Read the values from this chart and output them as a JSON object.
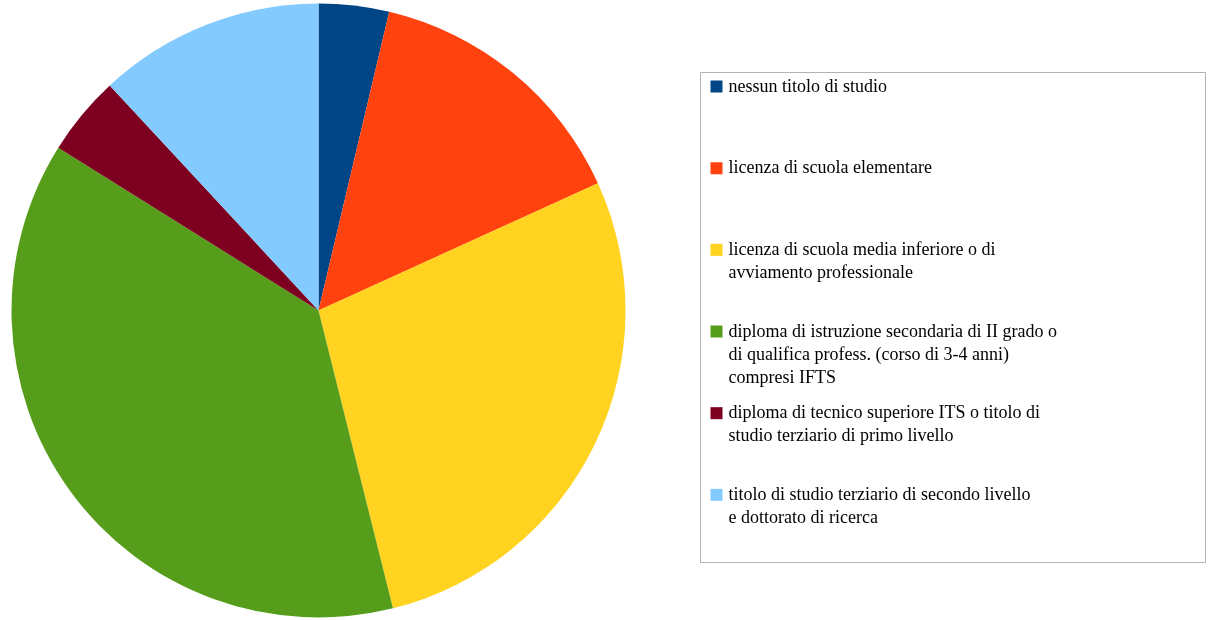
{
  "chart_data": {
    "type": "pie",
    "legend": "right",
    "categories": [
      "nessun titolo di studio",
      "licenza di scuola elementare",
      "licenza di scuola media inferiore o di avviamento professionale",
      "diploma di istruzione secondaria di II grado o di qualifica profess. (corso di 3-4 anni) compresi IFTS",
      "diploma di tecnico superiore ITS o titolo di studio terziario di primo livello",
      "titolo di studio terziario di secondo livello e dottorato di ricerca"
    ],
    "values": [
      3.7,
      14.5,
      27.9,
      37.8,
      4.2,
      11.9
    ],
    "colors": [
      "#004586",
      "#ff420e",
      "#ffd320",
      "#579d1c",
      "#7e0021",
      "#83caff"
    ]
  }
}
